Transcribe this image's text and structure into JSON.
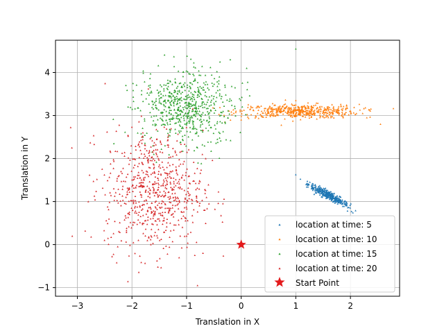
{
  "chart_data": {
    "type": "scatter",
    "title": "",
    "xlabel": "Translation in X",
    "ylabel": "Translation in Y",
    "xlim": [
      -3.4,
      2.9
    ],
    "ylim": [
      -1.2,
      4.75
    ],
    "xticks": [
      -3,
      -2,
      -1,
      0,
      1,
      2
    ],
    "yticks": [
      -1,
      0,
      1,
      2,
      3,
      4
    ],
    "grid": true,
    "legend_position": "lower-right",
    "series": [
      {
        "name": "location at time: 5",
        "color": "#1f77b4",
        "marker": "triangle",
        "cluster": {
          "center": [
            1.6,
            1.15
          ],
          "spread": [
            0.22,
            0.04
          ],
          "angle_deg": -35,
          "count": 360
        },
        "points": [
          [
            1.2,
            1.42
          ],
          [
            1.35,
            1.38
          ],
          [
            1.5,
            1.25
          ],
          [
            1.7,
            1.08
          ],
          [
            1.85,
            0.95
          ],
          [
            1.95,
            0.86
          ],
          [
            2.02,
            0.77
          ],
          [
            1.6,
            1.2
          ],
          [
            1.45,
            1.33
          ],
          [
            1.75,
            1.05
          ]
        ]
      },
      {
        "name": "location at time: 10",
        "color": "#ff7f0e",
        "marker": "triangle",
        "cluster": {
          "center": [
            1.05,
            3.1
          ],
          "spread": [
            0.55,
            0.08
          ],
          "angle_deg": 0,
          "count": 480
        },
        "points": [
          [
            -0.3,
            2.85
          ],
          [
            0.0,
            2.9
          ],
          [
            0.3,
            3.05
          ],
          [
            0.7,
            3.15
          ],
          [
            1.1,
            3.2
          ],
          [
            1.5,
            3.1
          ],
          [
            1.9,
            3.05
          ],
          [
            2.3,
            2.95
          ],
          [
            2.55,
            2.8
          ],
          [
            1.0,
            3.35
          ]
        ]
      },
      {
        "name": "location at time: 15",
        "color": "#2ca02c",
        "marker": "triangle",
        "cluster": {
          "center": [
            -1.0,
            3.2
          ],
          "spread": [
            0.42,
            0.42
          ],
          "angle_deg": 35,
          "count": 620
        },
        "points": [
          [
            -1.8,
            2.5
          ],
          [
            -1.6,
            2.1
          ],
          [
            -1.3,
            2.8
          ],
          [
            -1.0,
            3.3
          ],
          [
            -0.7,
            3.6
          ],
          [
            -0.4,
            3.9
          ],
          [
            -0.2,
            4.3
          ],
          [
            0.1,
            4.1
          ],
          [
            1.0,
            4.55
          ],
          [
            -1.5,
            3.3
          ]
        ]
      },
      {
        "name": "location at time: 20",
        "color": "#d62728",
        "marker": "triangle",
        "cluster": {
          "center": [
            -1.6,
            1.25
          ],
          "spread": [
            0.45,
            0.7
          ],
          "angle_deg": 0,
          "count": 700
        },
        "points": [
          [
            -3.1,
            2.25
          ],
          [
            -2.8,
            1.0
          ],
          [
            -2.2,
            1.7
          ],
          [
            -1.8,
            2.6
          ],
          [
            -1.6,
            1.3
          ],
          [
            -1.3,
            0.5
          ],
          [
            -1.0,
            0.2
          ],
          [
            -0.7,
            -0.2
          ],
          [
            -0.8,
            -0.95
          ],
          [
            -1.7,
            3.62
          ]
        ]
      }
    ],
    "start_point": {
      "name": "Start Point",
      "x": 0,
      "y": 0,
      "color": "#e31a1c",
      "marker": "star"
    }
  }
}
